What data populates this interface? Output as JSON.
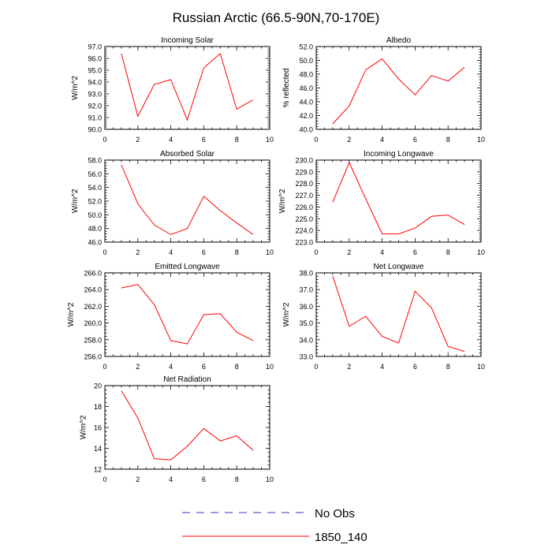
{
  "figure": {
    "title": "Russian Arctic (66.5-90N,70-170E)"
  },
  "legend": {
    "items": [
      {
        "label": "No Obs",
        "color": "#3333cc",
        "dash": true
      },
      {
        "label": "1850_140",
        "color": "#ff0000",
        "dash": false
      }
    ]
  },
  "chart_data": [
    {
      "type": "line",
      "title": "Incoming Solar",
      "ylabel": "W/m^2",
      "xlim": [
        0,
        10
      ],
      "ylim": [
        90,
        97
      ],
      "xticks": [
        "0",
        "2",
        "4",
        "6",
        "8",
        "10"
      ],
      "yticks": [
        "90.0",
        "91.0",
        "92.0",
        "93.0",
        "94.0",
        "95.0",
        "96.0",
        "97.0"
      ],
      "series": [
        {
          "name": "1850_140",
          "color": "#ff0000",
          "x": [
            1,
            2,
            3,
            4,
            5,
            6,
            7,
            8,
            9
          ],
          "y": [
            96.4,
            91.1,
            93.8,
            94.2,
            90.8,
            95.2,
            96.4,
            91.7,
            92.5
          ]
        }
      ]
    },
    {
      "type": "line",
      "title": "Albedo",
      "ylabel": "% reflected",
      "xlim": [
        0,
        10
      ],
      "ylim": [
        40,
        52
      ],
      "xticks": [
        "0",
        "2",
        "4",
        "6",
        "8",
        "10"
      ],
      "yticks": [
        "40.0",
        "42.0",
        "44.0",
        "46.0",
        "48.0",
        "50.0",
        "52.0"
      ],
      "series": [
        {
          "name": "1850_140",
          "color": "#ff0000",
          "x": [
            1,
            2,
            3,
            4,
            5,
            6,
            7,
            8,
            9
          ],
          "y": [
            40.8,
            43.4,
            48.6,
            50.2,
            47.3,
            45.0,
            47.8,
            47.0,
            49.0
          ]
        }
      ]
    },
    {
      "type": "line",
      "title": "Absorbed Solar",
      "ylabel": "W/m^2",
      "xlim": [
        0,
        10
      ],
      "ylim": [
        46,
        58
      ],
      "xticks": [
        "0",
        "2",
        "4",
        "6",
        "8",
        "10"
      ],
      "yticks": [
        "46.0",
        "48.0",
        "50.0",
        "52.0",
        "54.0",
        "56.0",
        "58.0"
      ],
      "series": [
        {
          "name": "1850_140",
          "color": "#ff0000",
          "x": [
            1,
            2,
            3,
            4,
            5,
            6,
            7,
            8,
            9
          ],
          "y": [
            57.3,
            51.6,
            48.5,
            47.1,
            48.0,
            52.7,
            50.6,
            48.8,
            47.1
          ]
        }
      ]
    },
    {
      "type": "line",
      "title": "Incoming Longwave",
      "ylabel": "W/m^2",
      "xlim": [
        0,
        10
      ],
      "ylim": [
        223,
        230
      ],
      "xticks": [
        "0",
        "2",
        "4",
        "6",
        "8",
        "10"
      ],
      "yticks": [
        "223.0",
        "224.0",
        "225.0",
        "226.0",
        "227.0",
        "228.0",
        "229.0",
        "230.0"
      ],
      "series": [
        {
          "name": "1850_140",
          "color": "#ff0000",
          "x": [
            1,
            2,
            3,
            4,
            5,
            6,
            7,
            8,
            9
          ],
          "y": [
            226.4,
            229.8,
            226.7,
            223.7,
            223.7,
            224.2,
            225.2,
            225.3,
            224.5
          ]
        }
      ]
    },
    {
      "type": "line",
      "title": "Emitted Longwave",
      "ylabel": "W/m^2",
      "xlim": [
        0,
        10
      ],
      "ylim": [
        256,
        266
      ],
      "xticks": [
        "0",
        "2",
        "4",
        "6",
        "8",
        "10"
      ],
      "yticks": [
        "256.0",
        "258.0",
        "260.0",
        "262.0",
        "264.0",
        "266.0"
      ],
      "series": [
        {
          "name": "1850_140",
          "color": "#ff0000",
          "x": [
            1,
            2,
            3,
            4,
            5,
            6,
            7,
            8,
            9
          ],
          "y": [
            264.2,
            264.6,
            262.2,
            257.9,
            257.5,
            261.0,
            261.1,
            258.9,
            257.9
          ]
        }
      ]
    },
    {
      "type": "line",
      "title": "Net Longwave",
      "ylabel": "W/m^2",
      "xlim": [
        0,
        10
      ],
      "ylim": [
        33,
        38
      ],
      "xticks": [
        "0",
        "2",
        "4",
        "6",
        "8",
        "10"
      ],
      "yticks": [
        "33.0",
        "34.0",
        "35.0",
        "36.0",
        "37.0",
        "38.0"
      ],
      "series": [
        {
          "name": "1850_140",
          "color": "#ff0000",
          "x": [
            1,
            2,
            3,
            4,
            5,
            6,
            7,
            8,
            9
          ],
          "y": [
            37.8,
            34.8,
            35.4,
            34.2,
            33.8,
            36.9,
            35.9,
            33.6,
            33.3
          ]
        }
      ]
    },
    {
      "type": "line",
      "title": "Net Radiation",
      "ylabel": "W/m^2",
      "xlim": [
        0,
        10
      ],
      "ylim": [
        12,
        20
      ],
      "xticks": [
        "0",
        "2",
        "4",
        "6",
        "8",
        "10"
      ],
      "yticks": [
        "12",
        "14",
        "16",
        "18",
        "20"
      ],
      "series": [
        {
          "name": "1850_140",
          "color": "#ff0000",
          "x": [
            1,
            2,
            3,
            4,
            5,
            6,
            7,
            8,
            9
          ],
          "y": [
            19.5,
            16.9,
            13.0,
            12.9,
            14.2,
            15.9,
            14.7,
            15.2,
            13.8
          ]
        }
      ]
    }
  ]
}
